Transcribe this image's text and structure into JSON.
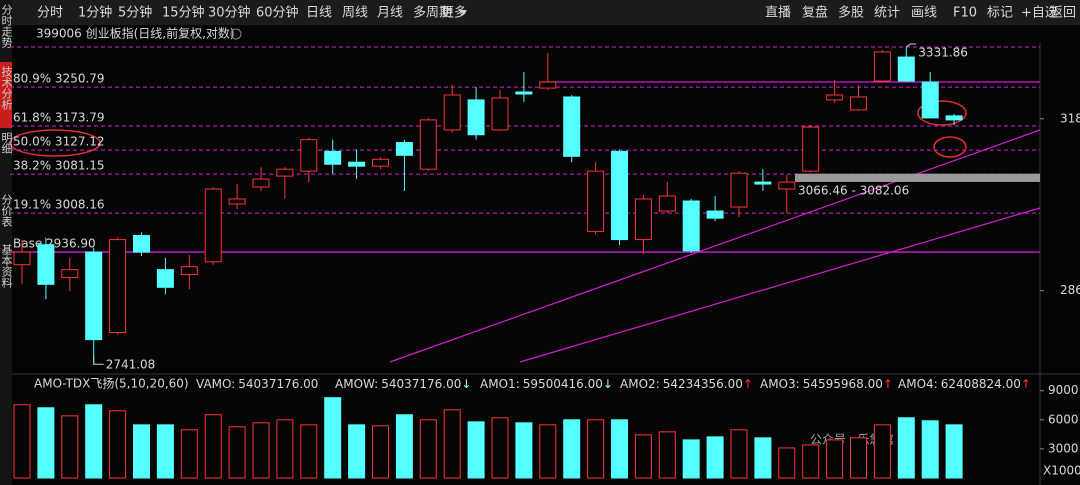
{
  "toolbar": {
    "periods": [
      "分时",
      "1分钟",
      "5分钟",
      "15分钟",
      "30分钟",
      "60分钟",
      "日线",
      "周线",
      "月线",
      "多周期",
      "更多"
    ],
    "active_period": 6,
    "tools": [
      "直播",
      "复盘",
      "多股",
      "统计",
      "画线",
      "F10",
      "标记",
      "+自选",
      "返回"
    ]
  },
  "side_tabs": [
    "分时走势",
    "技术分析",
    "明细",
    "分价表",
    "基本资料"
  ],
  "active_tab": 1,
  "watermark": "公众号 · 乐悠馆",
  "chart_data": [
    {
      "type": "candlestick",
      "title": "399006 创业板指(日线,前复权,对数)",
      "log_scale": true,
      "ylim": [
        2728,
        3367
      ],
      "yticks": [
        {
          "value": 3188,
          "label": "318"
        },
        {
          "value": 2868,
          "label": "286"
        }
      ],
      "up_color": "#ff3232",
      "down_color": "#54ffff",
      "level_color": "#d21ed2",
      "open": [
        2914.2,
        2950.3,
        2891.4,
        2936.9,
        2795.2,
        2967.1,
        2905.4,
        2896.6,
        2919.4,
        3025.1,
        3056.9,
        3077.5,
        3086.9,
        3124.7,
        3103.9,
        3096.3,
        3141.7,
        3090.6,
        3166.2,
        3225.2,
        3166.2,
        3241.0,
        3248.8,
        3231.1,
        2974.6,
        3124.7,
        2959.6,
        3012.0,
        3030.7,
        3012.0,
        3019.5,
        3066.2,
        3053.2,
        3086.9,
        3225.2,
        3205.5,
        3262.9,
        3311.4,
        3260.9,
        3193.7
      ],
      "high": [
        2959.6,
        2963.4,
        2926.4,
        2944.7,
        2963.4,
        2972.7,
        2926.4,
        2931.7,
        3056.9,
        3062.5,
        3094.4,
        3094.4,
        3151.1,
        3147.3,
        3128.4,
        3113.3,
        3147.3,
        3189.7,
        3254.8,
        3250.8,
        3244.9,
        3281.1,
        3319.5,
        3235.0,
        3103.9,
        3128.4,
        3041.9,
        3066.2,
        3034.5,
        3040.1,
        3086.9,
        3090.6,
        3079.3,
        3175.8,
        3264.9,
        3254.8,
        3325.9,
        3331.86,
        3281.1,
        3197.6
      ],
      "low": [
        2879.2,
        2852.9,
        2866.9,
        2741.08,
        2791.6,
        2929.9,
        2861.7,
        2870.4,
        2914.2,
        3015.8,
        3049.4,
        3034.5,
        3066.2,
        3081.2,
        3071.9,
        3090.6,
        3049.4,
        3086.9,
        3160.6,
        3147.3,
        3164.3,
        3221.2,
        3244.9,
        3103.9,
        2968.8,
        2950.3,
        2933.4,
        3008.3,
        2935.2,
        2993.3,
        3000.8,
        3049.4,
        3008.2,
        3085.0,
        3219.3,
        3203.5,
        3260.9,
        3260.9,
        3189.7,
        3175.8
      ],
      "close": [
        2936.9,
        2879.2,
        2905.4,
        2782.9,
        2959.6,
        2936.9,
        2873.9,
        2910.6,
        3053.2,
        3034.5,
        3071.9,
        3090.6,
        3147.3,
        3100.1,
        3096.3,
        3109.5,
        3117.1,
        3185.8,
        3235.0,
        3156.8,
        3229.1,
        3237.0,
        3260.9,
        3115.2,
        3086.9,
        2959.6,
        3034.5,
        3040.1,
        2939.1,
        2998.9,
        3083.0,
        3062.5,
        3066.2,
        3171.8,
        3235.0,
        3231.1,
        3321.8,
        3262.9,
        3189.7,
        3185.8
      ],
      "levels": [
        3331.86,
        {
          "value": 3250.79,
          "label": "80.9% 3250.79"
        },
        {
          "value": 3173.79,
          "label": "61.8% 3173.79"
        },
        {
          "value": 3127.12,
          "label": "50.0% 3127.12"
        },
        {
          "value": 3081.15,
          "label": "38.2% 3081.15"
        },
        {
          "value": 3008.16,
          "label": "19.1% 3008.16"
        },
        {
          "value": 2936.9,
          "label": "Base 2936.90"
        }
      ],
      "range": {
        "values": [
          3066.46,
          3082.06
        ],
        "label": "3066.46 - 3082.06"
      }
    },
    {
      "type": "bar",
      "title": "AMO-TDX飞扬(5,10,20,60)",
      "ylim": [
        0,
        10000
      ],
      "yticks": [
        3000,
        6000,
        9000
      ],
      "unit_label": "X1000",
      "values": [
        7550,
        7240,
        6410,
        7550,
        6930,
        5480,
        5480,
        4970,
        6520,
        5280,
        5690,
        6000,
        5480,
        8280,
        5480,
        5380,
        6520,
        6000,
        7030,
        5790,
        6210,
        5690,
        5480,
        6000,
        6000,
        6000,
        4450,
        4760,
        3930,
        4240,
        4970,
        4140,
        3100,
        3410,
        3930,
        4140,
        5480,
        6210,
        5900,
        5480
      ],
      "indicators": [
        {
          "name": "VAMO:",
          "value": 54037176,
          "label": "54037176.00",
          "color": "#ffffff"
        },
        {
          "name": "AMOW:",
          "value": 54037176,
          "label": "54037176.00",
          "color": "#ffd700",
          "arrow": "↓"
        },
        {
          "name": "AMO1:",
          "value": 59500416,
          "label": "59500416.00",
          "color": "#ffd700",
          "arrow": "↓"
        },
        {
          "name": "AMO2:",
          "value": 54234356,
          "label": "54234356.00",
          "color": "#ff44ff",
          "arrow": "↑"
        },
        {
          "name": "AMO3:",
          "value": 54595968,
          "label": "54595968.00",
          "color": "#22cc22",
          "arrow": "↑"
        },
        {
          "name": "AMO4:",
          "value": 62408824,
          "label": "62408824.00",
          "color": "#ffffff",
          "arrow": "↑"
        }
      ]
    }
  ]
}
